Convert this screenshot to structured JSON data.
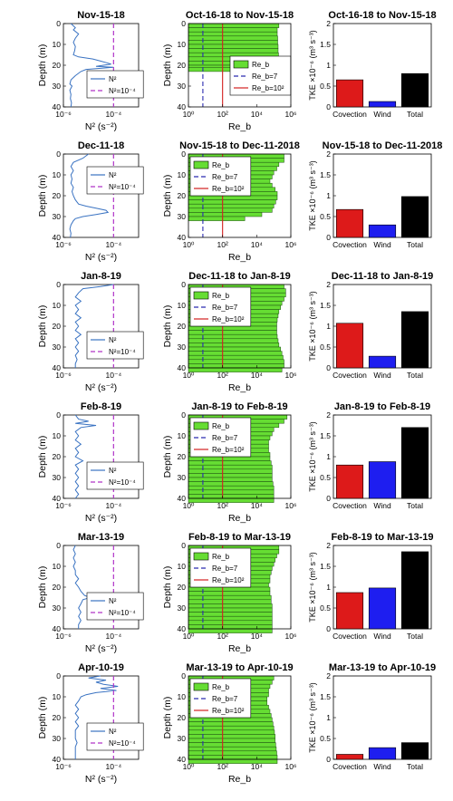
{
  "figure": {
    "colors": {
      "n2_line": "#3a73c2",
      "threshold": "#b035c8",
      "reb_fill": "#66dd33",
      "reb_line7": "#2b2bb0",
      "reb_line100": "#d32020",
      "convection": "#dd1a1a",
      "wind": "#1e1ef0",
      "total": "#000000"
    },
    "labels": {
      "depth": "Depth (m)",
      "n2_xlabel": "N² (s⁻²)",
      "reb_xlabel": "Re_b",
      "tke_ylabel": "TKE ×10⁻⁶ (m³ s⁻³)",
      "leg_n2": "N²",
      "leg_n2_thr": "N²=10⁻⁴",
      "leg_reb": "Re_b",
      "leg_reb7": "Re_b=7",
      "leg_reb100": "Re_b=10²",
      "cat_convection": "Covection",
      "cat_wind": "Wind",
      "cat_total": "Total"
    },
    "n2_ticks": [
      "10⁻⁶",
      "10⁻⁴"
    ],
    "reb_ticks": [
      "10⁰",
      "10²",
      "10⁴",
      "10⁶"
    ],
    "depth_ticks": [
      "0",
      "10",
      "20",
      "30",
      "40"
    ],
    "tke_ticks": [
      "0",
      "0.5",
      "1",
      "1.5",
      "2"
    ]
  },
  "chart_data": [
    {
      "type": "line",
      "title": "Nov-15-18",
      "xlabel": "N² (s⁻²)",
      "ylabel": "Depth (m)",
      "xscale": "log",
      "xlim": [
        1e-06,
        0.001
      ],
      "ylim": [
        0,
        40
      ],
      "y_reversed": true,
      "legend": "bottom-right",
      "series": [
        {
          "name": "N²",
          "depth": [
            0,
            2,
            3,
            5,
            7,
            9,
            11,
            13,
            15,
            16,
            17,
            18,
            19,
            19.5,
            20,
            20.5,
            21,
            21.5,
            22,
            23,
            25,
            27,
            29,
            30,
            32,
            34,
            36,
            38,
            40
          ],
          "values": [
            2e-06,
            3e-06,
            2.5e-06,
            4e-06,
            3e-06,
            2.5e-06,
            3e-06,
            2.8e-06,
            2.5e-06,
            4e-06,
            1.5e-05,
            3e-05,
            6e-05,
            8e-05,
            4e-05,
            2e-05,
            0.0001,
            3e-05,
            8e-06,
            5e-06,
            3e-06,
            2e-06,
            1.8e-06,
            2.2e-06,
            1.8e-06,
            2e-06,
            1.9e-06,
            2.1e-06,
            2e-06
          ]
        },
        {
          "name": "N²=10⁻⁴",
          "x": [
            0.0001,
            0.0001
          ],
          "depth": [
            0,
            40
          ]
        }
      ]
    },
    {
      "type": "bar",
      "orientation": "horizontal",
      "title": "Oct-16-18 to Nov-15-18",
      "xlabel": "Re_b",
      "ylabel": "Depth (m)",
      "xscale": "log",
      "xlim": [
        1,
        1000000.0
      ],
      "ylim": [
        0,
        40
      ],
      "y_reversed": true,
      "legend": "right",
      "series": [
        {
          "name": "Re_b",
          "depth": [
            0,
            2,
            4,
            6,
            8,
            10,
            12,
            14,
            16,
            18,
            20,
            21,
            22
          ],
          "values": [
            200000.0,
            160000.0,
            160000.0,
            170000.0,
            170000.0,
            180000.0,
            180000.0,
            190000.0,
            190000.0,
            200000.0,
            300000.0,
            120000.0,
            1
          ]
        }
      ],
      "reference_lines": [
        {
          "name": "Re_b=7",
          "x": 7
        },
        {
          "name": "Re_b=10²",
          "x": 100
        }
      ]
    },
    {
      "type": "bar",
      "title": "Oct-16-18 to Nov-15-18",
      "ylabel": "TKE ×10⁻⁶ (m³ s⁻³)",
      "ylim": [
        0,
        2
      ],
      "categories": [
        "Covection",
        "Wind",
        "Total"
      ],
      "values": [
        0.65,
        0.13,
        0.8
      ]
    },
    {
      "type": "line",
      "title": "Dec-11-18",
      "xlabel": "N² (s⁻²)",
      "ylabel": "Depth (m)",
      "xscale": "log",
      "xlim": [
        1e-06,
        0.001
      ],
      "ylim": [
        0,
        40
      ],
      "y_reversed": true,
      "legend": "top-right",
      "series": [
        {
          "name": "N²",
          "depth": [
            0,
            2,
            4,
            6,
            8,
            10,
            12,
            14,
            16,
            18,
            20,
            22,
            24,
            25,
            26,
            27,
            28,
            29,
            30,
            31,
            32,
            34,
            36,
            38,
            40
          ],
          "values": [
            1e-05,
            6e-06,
            2.5e-06,
            2e-06,
            2.5e-06,
            2e-06,
            2.2e-06,
            2e-06,
            2.5e-06,
            2.2e-06,
            2.5e-06,
            3e-06,
            4e-06,
            8e-06,
            2e-05,
            5e-05,
            6e-05,
            2e-05,
            6e-06,
            3e-06,
            2.5e-06,
            2e-06,
            1.8e-06,
            2e-06,
            1.9e-06
          ]
        },
        {
          "name": "N²=10⁻⁴",
          "x": [
            0.0001,
            0.0001
          ],
          "depth": [
            0,
            40
          ]
        }
      ]
    },
    {
      "type": "bar",
      "orientation": "horizontal",
      "title": "Nov-15-18 to Dec-11-2018",
      "xlabel": "Re_b",
      "ylabel": "Depth (m)",
      "xscale": "log",
      "xlim": [
        1,
        1000000.0
      ],
      "ylim": [
        0,
        40
      ],
      "y_reversed": true,
      "legend": "top-left",
      "series": [
        {
          "name": "Re_b",
          "depth": [
            0,
            2,
            4,
            6,
            8,
            10,
            12,
            14,
            16,
            18,
            20,
            22,
            24,
            26,
            28,
            30,
            32
          ],
          "values": [
            400000.0,
            400000.0,
            200000.0,
            150000.0,
            100000.0,
            80000.0,
            60000.0,
            80000.0,
            120000.0,
            160000.0,
            160000.0,
            130000.0,
            100000.0,
            80000.0,
            20000.0,
            2000.0,
            1
          ]
        }
      ],
      "reference_lines": [
        {
          "name": "Re_b=7",
          "x": 7
        },
        {
          "name": "Re_b=10²",
          "x": 100
        }
      ]
    },
    {
      "type": "bar",
      "title": "Nov-15-18 to Dec-11-2018",
      "ylabel": "TKE ×10⁻⁶ (m³ s⁻³)",
      "ylim": [
        0,
        2
      ],
      "categories": [
        "Covection",
        "Wind",
        "Total"
      ],
      "values": [
        0.67,
        0.3,
        0.98
      ]
    },
    {
      "type": "line",
      "title": "Jan-8-19",
      "xlabel": "N² (s⁻²)",
      "ylabel": "Depth (m)",
      "xscale": "log",
      "xlim": [
        1e-06,
        0.001
      ],
      "ylim": [
        0,
        40
      ],
      "y_reversed": true,
      "legend": "bottom-right",
      "series": [
        {
          "name": "N²",
          "depth": [
            0,
            1,
            2,
            4,
            6,
            8,
            10,
            12,
            14,
            16,
            18,
            20,
            22,
            24,
            26,
            28,
            30,
            32,
            34,
            36,
            38,
            40
          ],
          "values": [
            0.0001,
            3e-05,
            6e-06,
            4e-06,
            3e-06,
            5e-06,
            3e-06,
            4e-06,
            3e-06,
            5e-06,
            3e-06,
            4e-06,
            3e-06,
            5e-06,
            3e-06,
            4e-06,
            3e-06,
            4e-06,
            3e-06,
            3.5e-06,
            3e-06,
            3e-06
          ]
        },
        {
          "name": "N²=10⁻⁴",
          "x": [
            0.0001,
            0.0001
          ],
          "depth": [
            0,
            40
          ]
        }
      ]
    },
    {
      "type": "bar",
      "orientation": "horizontal",
      "title": "Dec-11-18 to Jan-8-19",
      "xlabel": "Re_b",
      "ylabel": "Depth (m)",
      "xscale": "log",
      "xlim": [
        1,
        1000000.0
      ],
      "ylim": [
        0,
        40
      ],
      "y_reversed": true,
      "legend": "top-left",
      "series": [
        {
          "name": "Re_b",
          "depth": [
            0,
            2,
            4,
            6,
            8,
            10,
            12,
            14,
            16,
            18,
            20,
            22,
            24,
            26,
            28,
            30,
            32,
            34,
            36,
            38,
            40
          ],
          "values": [
            400000.0,
            500000.0,
            500000.0,
            400000.0,
            300000.0,
            250000.0,
            200000.0,
            180000.0,
            160000.0,
            150000.0,
            150000.0,
            150000.0,
            160000.0,
            180000.0,
            200000.0,
            250000.0,
            300000.0,
            350000.0,
            400000.0,
            400000.0,
            300000.0
          ]
        }
      ],
      "reference_lines": [
        {
          "name": "Re_b=7",
          "x": 7
        },
        {
          "name": "Re_b=10²",
          "x": 100
        }
      ]
    },
    {
      "type": "bar",
      "title": "Dec-11-18 to Jan-8-19",
      "ylabel": "TKE ×10⁻⁶ (m³ s⁻³)",
      "ylim": [
        0,
        2
      ],
      "categories": [
        "Covection",
        "Wind",
        "Total"
      ],
      "values": [
        1.07,
        0.28,
        1.35
      ]
    },
    {
      "type": "line",
      "title": "Feb-8-19",
      "xlabel": "N² (s⁻²)",
      "ylabel": "Depth (m)",
      "xscale": "log",
      "xlim": [
        1e-06,
        0.001
      ],
      "ylim": [
        0,
        40
      ],
      "y_reversed": true,
      "legend": "bottom-right",
      "series": [
        {
          "name": "N²",
          "depth": [
            0,
            2,
            3,
            4,
            5,
            6,
            8,
            10,
            12,
            14,
            16,
            18,
            20,
            22,
            24,
            26,
            28,
            30,
            32,
            34,
            36,
            38,
            40
          ],
          "values": [
            3e-06,
            4e-06,
            1e-05,
            3e-06,
            2e-05,
            5e-06,
            3e-06,
            4e-06,
            3e-06,
            5e-06,
            3e-06,
            4e-06,
            3e-06,
            6e-06,
            3e-06,
            4e-06,
            3e-06,
            4e-06,
            3e-06,
            4e-06,
            3e-06,
            4e-06,
            3e-06
          ]
        },
        {
          "name": "N²=10⁻⁴",
          "x": [
            0.0001,
            0.0001
          ],
          "depth": [
            0,
            40
          ]
        }
      ]
    },
    {
      "type": "bar",
      "orientation": "horizontal",
      "title": "Jan-8-19 to Feb-8-19",
      "xlabel": "Re_b",
      "ylabel": "Depth (m)",
      "xscale": "log",
      "xlim": [
        1,
        1000000.0
      ],
      "ylim": [
        0,
        40
      ],
      "y_reversed": true,
      "legend": "top-left",
      "series": [
        {
          "name": "Re_b",
          "depth": [
            0,
            2,
            4,
            6,
            8,
            10,
            12,
            14,
            16,
            18,
            20,
            22,
            24,
            26,
            28,
            30,
            32,
            34,
            36,
            38,
            40
          ],
          "values": [
            600000.0,
            400000.0,
            200000.0,
            100000.0,
            80000.0,
            60000.0,
            50000.0,
            50000.0,
            50000.0,
            60000.0,
            60000.0,
            70000.0,
            80000.0,
            80000.0,
            80000.0,
            80000.0,
            90000.0,
            100000.0,
            100000.0,
            100000.0,
            100000.0
          ]
        }
      ],
      "reference_lines": [
        {
          "name": "Re_b=7",
          "x": 7
        },
        {
          "name": "Re_b=10²",
          "x": 100
        }
      ]
    },
    {
      "type": "bar",
      "title": "Jan-8-19 to Feb-8-19",
      "ylabel": "TKE ×10⁻⁶ (m³ s⁻³)",
      "ylim": [
        0,
        2
      ],
      "categories": [
        "Covection",
        "Wind",
        "Total"
      ],
      "values": [
        0.8,
        0.88,
        1.7
      ]
    },
    {
      "type": "line",
      "title": "Mar-13-19",
      "xlabel": "N² (s⁻²)",
      "ylabel": "Depth (m)",
      "xscale": "log",
      "xlim": [
        1e-06,
        0.001
      ],
      "ylim": [
        0,
        40
      ],
      "y_reversed": true,
      "legend": "bottom-right",
      "series": [
        {
          "name": "N²",
          "depth": [
            0,
            2,
            4,
            6,
            8,
            10,
            12,
            14,
            16,
            18,
            20,
            22,
            24,
            25,
            26,
            28,
            30,
            32,
            34,
            36,
            38,
            40
          ],
          "values": [
            3e-06,
            2.5e-06,
            3e-06,
            2.5e-06,
            3e-06,
            2.5e-06,
            3e-06,
            3e-06,
            4e-06,
            3e-06,
            4e-06,
            5e-06,
            7e-06,
            1.2e-05,
            6e-06,
            5e-06,
            4e-06,
            5e-06,
            4e-06,
            5e-06,
            4e-06,
            4e-06
          ]
        },
        {
          "name": "N²=10⁻⁴",
          "x": [
            0.0001,
            0.0001
          ],
          "depth": [
            0,
            40
          ]
        }
      ]
    },
    {
      "type": "bar",
      "orientation": "horizontal",
      "title": "Feb-8-19 to Mar-13-19",
      "xlabel": "Re_b",
      "ylabel": "Depth (m)",
      "xscale": "log",
      "xlim": [
        1,
        1000000.0
      ],
      "ylim": [
        0,
        40
      ],
      "y_reversed": true,
      "legend": "top-left",
      "series": [
        {
          "name": "Re_b",
          "depth": [
            0,
            2,
            4,
            6,
            8,
            10,
            12,
            14,
            16,
            18,
            20,
            22,
            24,
            26,
            28,
            30,
            32,
            34,
            36,
            38,
            40
          ],
          "values": [
            200000.0,
            200000.0,
            150000.0,
            120000.0,
            100000.0,
            80000.0,
            70000.0,
            60000.0,
            60000.0,
            50000.0,
            60000.0,
            60000.0,
            70000.0,
            70000.0,
            80000.0,
            80000.0,
            80000.0,
            80000.0,
            80000.0,
            80000.0,
            80000.0
          ]
        }
      ],
      "reference_lines": [
        {
          "name": "Re_b=7",
          "x": 7
        },
        {
          "name": "Re_b=10²",
          "x": 100
        }
      ]
    },
    {
      "type": "bar",
      "title": "Feb-8-19 to Mar-13-19",
      "ylabel": "TKE ×10⁻⁶ (m³ s⁻³)",
      "ylim": [
        0,
        2
      ],
      "categories": [
        "Covection",
        "Wind",
        "Total"
      ],
      "values": [
        0.87,
        0.98,
        1.85
      ]
    },
    {
      "type": "line",
      "title": "Apr-10-19",
      "xlabel": "N² (s⁻²)",
      "ylabel": "Depth (m)",
      "xscale": "log",
      "xlim": [
        1e-06,
        0.001
      ],
      "ylim": [
        0,
        40
      ],
      "y_reversed": true,
      "legend": "bottom-right",
      "series": [
        {
          "name": "N²",
          "depth": [
            0,
            1,
            2,
            3,
            4,
            5,
            6,
            7,
            8,
            9,
            10,
            12,
            14,
            16,
            18,
            20,
            22,
            24,
            26,
            28,
            30,
            32,
            34,
            36,
            38,
            40
          ],
          "values": [
            3e-05,
            1e-05,
            5e-05,
            2e-05,
            4e-05,
            0.00015,
            3e-05,
            0.00013,
            2e-05,
            8e-06,
            5e-06,
            4e-06,
            3e-06,
            4e-06,
            3e-06,
            4e-06,
            3e-06,
            4e-06,
            3e-06,
            3e-06,
            3e-06,
            3.5e-06,
            3e-06,
            3e-06,
            3e-06,
            3e-06
          ]
        },
        {
          "name": "N²=10⁻⁴",
          "x": [
            0.0001,
            0.0001
          ],
          "depth": [
            0,
            40
          ]
        }
      ]
    },
    {
      "type": "bar",
      "orientation": "horizontal",
      "title": "Mar-13-19 to Apr-10-19",
      "xlabel": "Re_b",
      "ylabel": "Depth (m)",
      "xscale": "log",
      "xlim": [
        1,
        1000000.0
      ],
      "ylim": [
        0,
        40
      ],
      "y_reversed": true,
      "legend": "top-left",
      "series": [
        {
          "name": "Re_b",
          "depth": [
            0,
            2,
            4,
            6,
            8,
            10,
            12,
            14,
            16,
            18,
            20,
            22,
            24,
            26,
            28,
            30,
            32,
            34,
            36,
            38,
            40
          ],
          "values": [
            100000.0,
            80000.0,
            60000.0,
            50000.0,
            50000.0,
            40000.0,
            40000.0,
            50000.0,
            60000.0,
            70000.0,
            80000.0,
            90000.0,
            100000.0,
            110000.0,
            120000.0,
            120000.0,
            130000.0,
            140000.0,
            150000.0,
            160000.0,
            160000.0
          ]
        }
      ],
      "reference_lines": [
        {
          "name": "Re_b=7",
          "x": 7
        },
        {
          "name": "Re_b=10²",
          "x": 100
        }
      ]
    },
    {
      "type": "bar",
      "title": "Mar-13-19 to Apr-10-19",
      "ylabel": "TKE ×10⁻⁶ (m³ s⁻³)",
      "ylim": [
        0,
        2
      ],
      "categories": [
        "Covection",
        "Wind",
        "Total"
      ],
      "values": [
        0.12,
        0.28,
        0.4
      ]
    }
  ]
}
